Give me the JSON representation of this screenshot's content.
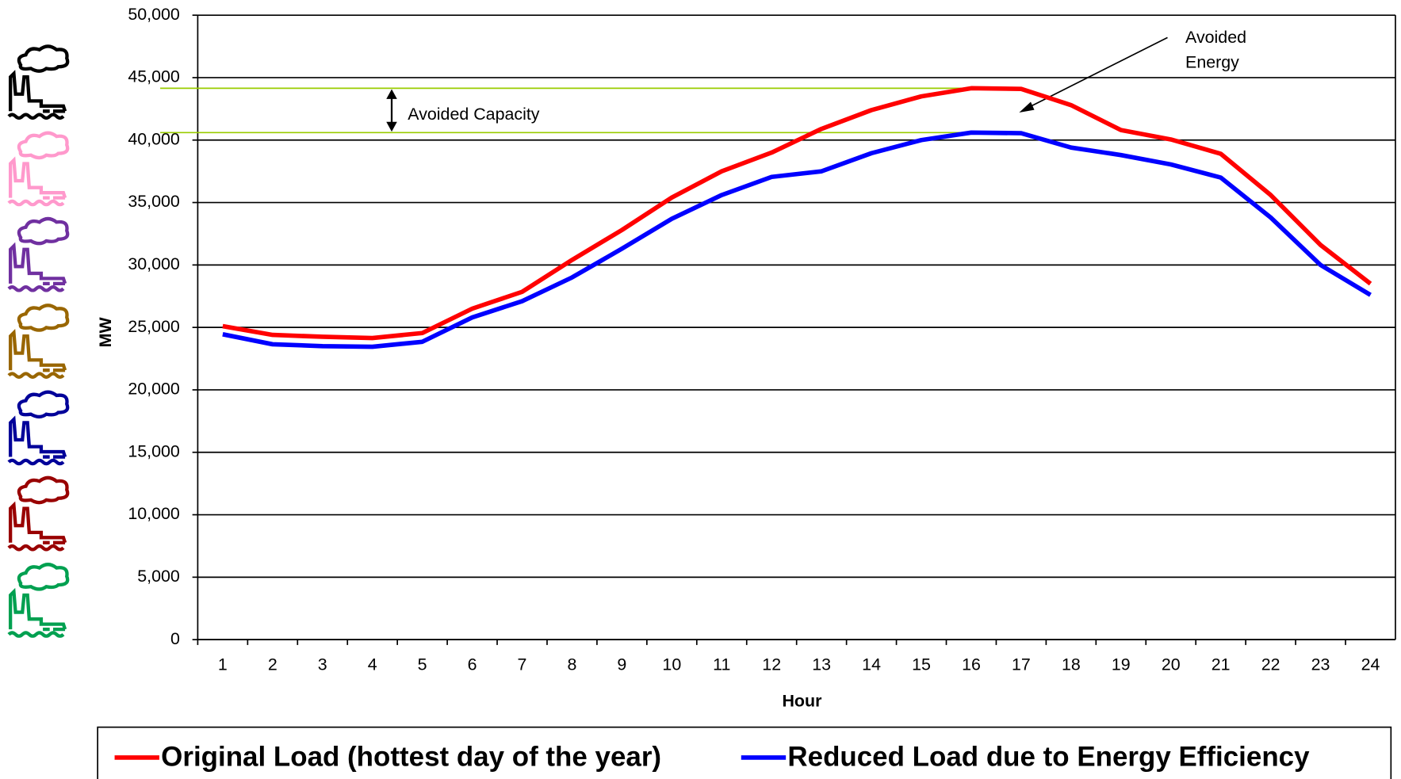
{
  "chart_data": {
    "type": "line",
    "categories": [
      "1",
      "2",
      "3",
      "4",
      "5",
      "6",
      "7",
      "8",
      "9",
      "10",
      "11",
      "12",
      "13",
      "14",
      "15",
      "16",
      "17",
      "18",
      "19",
      "20",
      "21",
      "22",
      "23",
      "24"
    ],
    "series": [
      {
        "name": "Original Load (hottest day of the year)",
        "color": "#ff0000",
        "values": [
          25100,
          24400,
          24250,
          24150,
          24550,
          26500,
          27850,
          30400,
          32800,
          35400,
          37500,
          39000,
          40900,
          42400,
          43500,
          44150,
          44100,
          42800,
          40800,
          40050,
          38900,
          35600,
          31600,
          28500
        ]
      },
      {
        "name": "Reduced Load due to Energy Efficiency",
        "color": "#0000ff",
        "values": [
          24450,
          23650,
          23500,
          23450,
          23850,
          25800,
          27100,
          29000,
          31300,
          33700,
          35600,
          37050,
          37500,
          38950,
          40000,
          40600,
          40550,
          39400,
          38800,
          38050,
          37000,
          33800,
          30000,
          27600
        ]
      }
    ],
    "ylim": [
      0,
      50000
    ],
    "yticks": [
      0,
      {
        "value": 5000,
        "label": "5,000"
      },
      {
        "value": 10000,
        "label": "10,000"
      },
      {
        "value": 15000,
        "label": "15,000"
      },
      {
        "value": 20000,
        "label": "20,000"
      },
      {
        "value": 25000,
        "label": "25,000"
      },
      {
        "value": 30000,
        "label": "30,000"
      },
      {
        "value": 35000,
        "label": "35,000"
      },
      {
        "value": 40000,
        "label": "40,000"
      },
      {
        "value": 45000,
        "label": "45,000"
      },
      {
        "value": 50000,
        "label": "50,000"
      }
    ],
    "xlabel": "Hour",
    "ylabel": "MW",
    "grid": true,
    "legend": "bottom",
    "annotations": {
      "capacity": "Avoided Capacity",
      "energy": [
        "Avoided",
        "Energy"
      ]
    }
  }
}
